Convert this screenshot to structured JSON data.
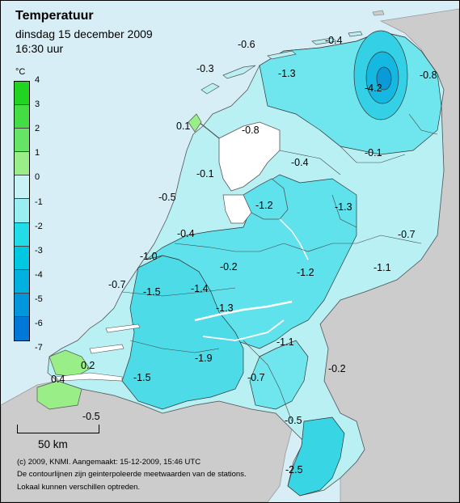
{
  "header": {
    "title": "Temperatuur",
    "date": "dinsdag 15 december 2009",
    "time": "16:30 uur"
  },
  "legend": {
    "unit": "°C",
    "ticks": [
      "4",
      "3",
      "2",
      "1",
      "0",
      "-1",
      "-2",
      "-3",
      "-4",
      "-5",
      "-6",
      "-7"
    ],
    "colors": [
      "#22d422",
      "#44dd44",
      "#66e466",
      "#99ee88",
      "#c8f3f6",
      "#99eef2",
      "#22dde8",
      "#00c8e0",
      "#00b0e0",
      "#0096dc",
      "#0078d8"
    ]
  },
  "map_labels": [
    {
      "id": "terschelling",
      "text": "-0.6"
    },
    {
      "id": "schiermonnikoog",
      "text": "-0.4"
    },
    {
      "id": "vlieland",
      "text": "-0.3"
    },
    {
      "id": "leeuwarden",
      "text": "-1.3"
    },
    {
      "id": "eelde",
      "text": "-4.2"
    },
    {
      "id": "nieuw-beerta",
      "text": "-0.8"
    },
    {
      "id": "de-kooy",
      "text": "0.1"
    },
    {
      "id": "stavoren",
      "text": "-0.8"
    },
    {
      "id": "hoogeveen",
      "text": "-0.1"
    },
    {
      "id": "lelystad",
      "text": "-0.4"
    },
    {
      "id": "berkhout",
      "text": "-0.1"
    },
    {
      "id": "ijmuiden",
      "text": "-0.5"
    },
    {
      "id": "marknesse",
      "text": "-1.2"
    },
    {
      "id": "heino",
      "text": "-1.3"
    },
    {
      "id": "twenthe",
      "text": "-0.7"
    },
    {
      "id": "schiphol",
      "text": "-0.4"
    },
    {
      "id": "valkenburg",
      "text": "-1.0"
    },
    {
      "id": "de-bilt",
      "text": "-0.2"
    },
    {
      "id": "deelen",
      "text": "-1.2"
    },
    {
      "id": "hupsel",
      "text": "-1.1"
    },
    {
      "id": "hoek-van-holland",
      "text": "-0.7"
    },
    {
      "id": "rotterdam",
      "text": "-1.5"
    },
    {
      "id": "cabauw",
      "text": "-1.4"
    },
    {
      "id": "herwijnen",
      "text": "-1.3"
    },
    {
      "id": "volkel",
      "text": "-1.1"
    },
    {
      "id": "vlissingen",
      "text": "0.2"
    },
    {
      "id": "gilze-rijen",
      "text": "-1.9"
    },
    {
      "id": "westdorpe",
      "text": "0.4"
    },
    {
      "id": "woensdrecht",
      "text": "-1.5"
    },
    {
      "id": "eindhoven",
      "text": "-0.7"
    },
    {
      "id": "arcen",
      "text": "-0.2"
    },
    {
      "id": "ellewoutsdijk",
      "text": "-0.5"
    },
    {
      "id": "ell",
      "text": "-0.5"
    },
    {
      "id": "maastricht",
      "text": "-2.5"
    }
  ],
  "scale": {
    "label": "50 km"
  },
  "footer": [
    "(c) 2009, KNMI. Aangemaakt: 15-12-2009, 15:46 UTC",
    "De contourlijnen zijn geinterpoleerde meetwaarden van de stations.",
    "Lokaal kunnen verschillen optreden."
  ]
}
